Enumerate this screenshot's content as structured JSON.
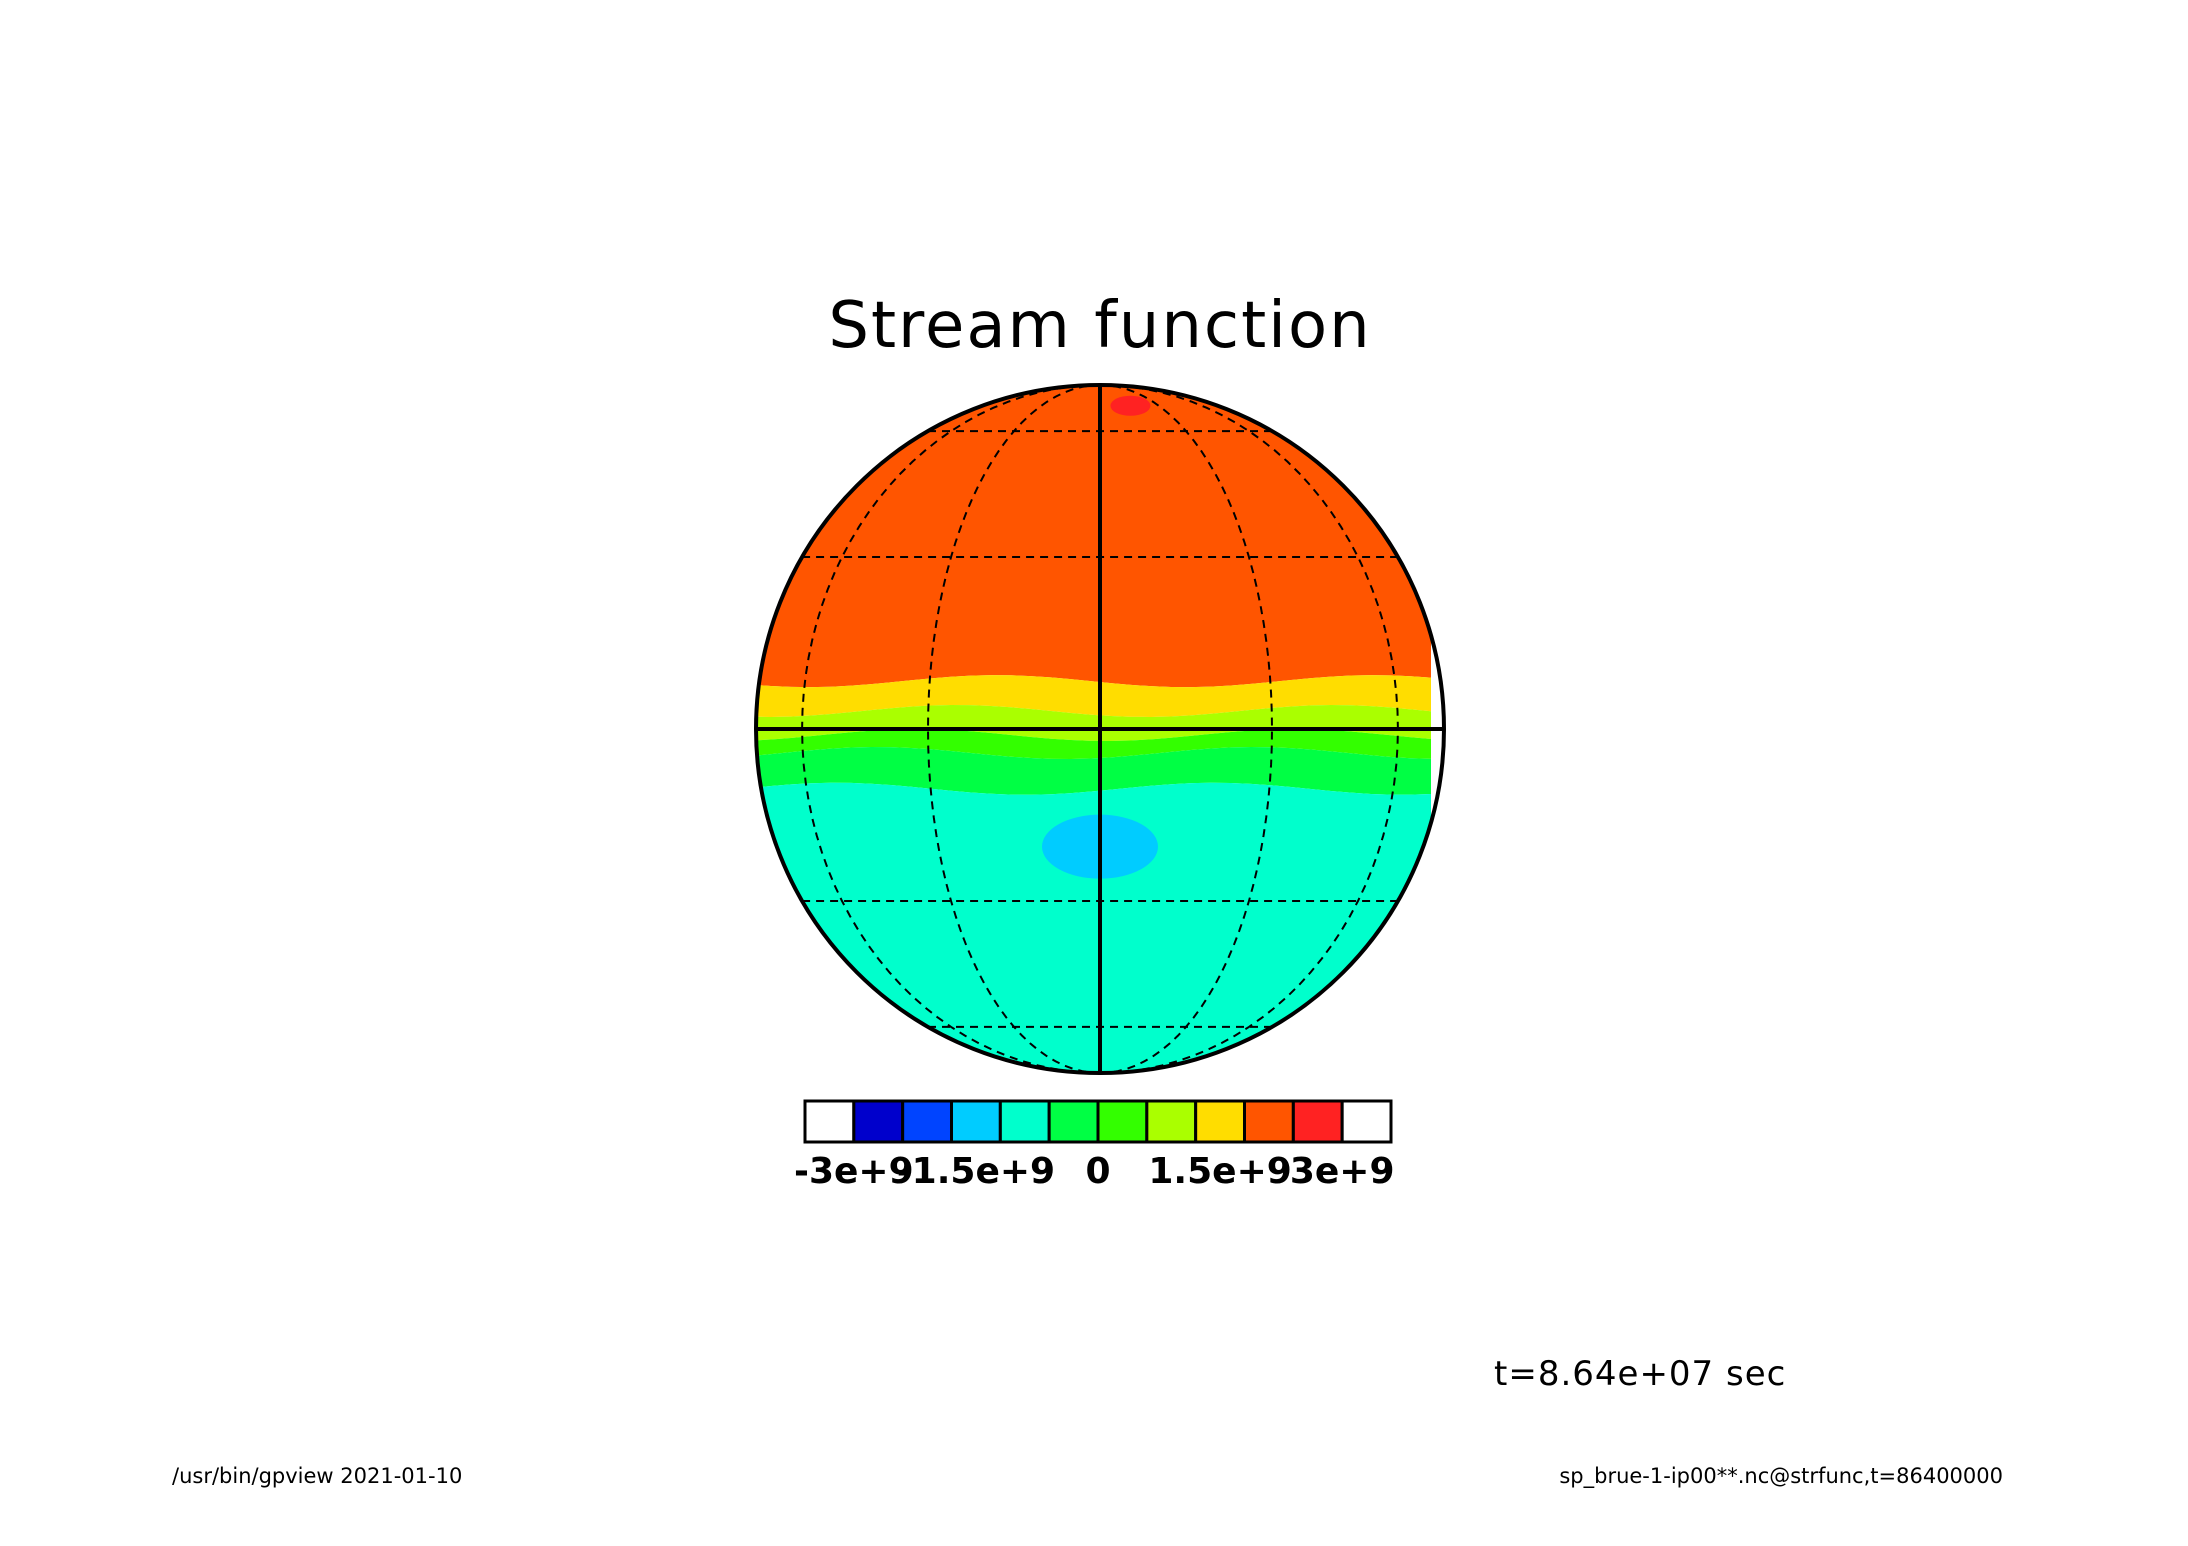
{
  "footer": {
    "left": "/usr/bin/gpview  2021-01-10",
    "right": "sp_brue-1-ip00**.nc@strfunc,t=86400000"
  },
  "chart_data": {
    "type": "heatmap",
    "projection": "orthographic",
    "title": "Stream function",
    "annotation": "t=8.64e+07 sec",
    "grid": true,
    "legend_placement": "bottom",
    "colorbar": {
      "levels": [
        -3000000000.0,
        -2500000000.0,
        -2000000000.0,
        -1500000000.0,
        -1000000000.0,
        -500000000.0,
        0,
        500000000.0,
        1000000000.0,
        1500000000.0,
        2000000000.0,
        2500000000.0,
        3000000000.0
      ],
      "colors": [
        "#ffffff",
        "#0000cc",
        "#0044ff",
        "#00ccff",
        "#00ffcc",
        "#00ff44",
        "#33ff00",
        "#aaff00",
        "#ffdd00",
        "#ff5500",
        "#ff2222",
        "#ffffff"
      ],
      "tick_labels": [
        "-3e+9",
        "-1.5e+9",
        "0",
        "1.5e+9",
        "3e+9"
      ],
      "tick_values": [
        -3000000000.0,
        -1500000000.0,
        0,
        1500000000.0,
        3000000000.0
      ]
    },
    "latitude_bands": [
      {
        "lat_from": 90,
        "lat_to": 8,
        "value_range": [
          1000000000.0,
          1500000000.0
        ]
      },
      {
        "lat_from": 8,
        "lat_to": 3,
        "value_range": [
          500000000.0,
          1000000000.0
        ]
      },
      {
        "lat_from": 3,
        "lat_to": -1,
        "value_range": [
          0,
          500000000.0
        ]
      },
      {
        "lat_from": -1,
        "lat_to": -4,
        "value_range": [
          -500000000.0,
          0
        ]
      },
      {
        "lat_from": -4,
        "lat_to": -10,
        "value_range": [
          -1000000000.0,
          -500000000.0
        ]
      },
      {
        "lat_from": -10,
        "lat_to": -90,
        "value_range": [
          -1500000000.0,
          -1000000000.0
        ]
      }
    ],
    "features": [
      {
        "name": "negative vortex",
        "lon": 0,
        "lat": -20,
        "value_range": [
          -2000000000.0,
          -1500000000.0
        ]
      },
      {
        "name": "positive vortex",
        "lon": 15,
        "lat": 70,
        "value_range": [
          1500000000.0,
          2000000000.0
        ]
      }
    ]
  }
}
